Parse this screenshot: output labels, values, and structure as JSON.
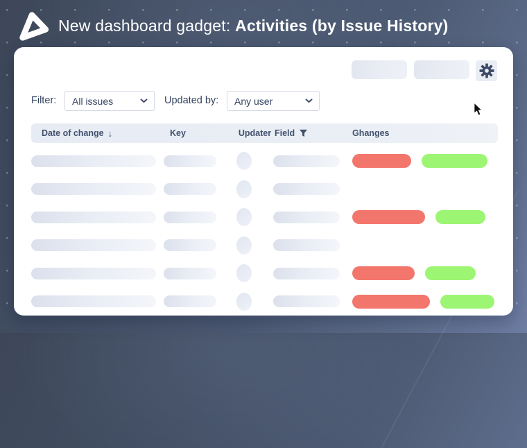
{
  "header": {
    "title_regular": "New dashboard gadget: ",
    "title_bold": "Activities (by Issue History)"
  },
  "toolbar": {
    "skeleton_buttons": 2,
    "gear_icon": "gear"
  },
  "filters": {
    "filter_label": "Filter:",
    "filter_value": "All issues",
    "updated_by_label": "Updated by:",
    "updated_by_value": "Any user"
  },
  "icons": {
    "sort_desc": "↓",
    "field_filter": "funnel",
    "select_chevron": "chevron-down",
    "logo": "triangle-ring",
    "cursor": "arrow-pointer"
  },
  "table": {
    "columns": [
      {
        "label": "Date of change",
        "icon": "sort-desc-icon"
      },
      {
        "label": "Key"
      },
      {
        "label": "Updater"
      },
      {
        "label": "Field",
        "icon": "filter-icon"
      },
      {
        "label": "Ghanges"
      }
    ],
    "rows": [
      {
        "changes": {
          "removed_w": 85,
          "added_w": 95
        }
      },
      {
        "changes": null
      },
      {
        "changes": {
          "removed_w": 105,
          "added_w": 72
        }
      },
      {
        "changes": null
      },
      {
        "changes": {
          "removed_w": 90,
          "added_w": 73
        }
      },
      {
        "changes": {
          "removed_w": 112,
          "added_w": 78
        }
      }
    ]
  },
  "colors": {
    "removed_pill": "#F3766C",
    "added_pill": "#9CF573",
    "accent_navy": "#3E4B66",
    "banner_bg": "#3D4759",
    "header_row_bg": "#E8ECF3"
  }
}
